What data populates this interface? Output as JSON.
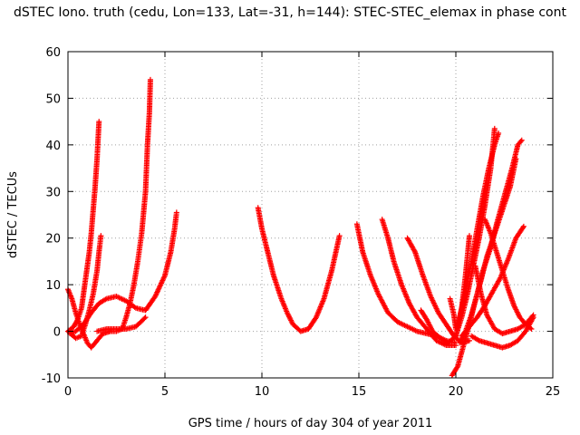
{
  "chart_data": {
    "type": "scatter",
    "title": "dSTEC Iono. truth (cedu, Lon=133, Lat=-31, h=144): STEC-STEC_elemax in phase cont",
    "xlabel": "GPS time / hours of day 304 of year 2011",
    "ylabel": "dSTEC  / TECUs",
    "xlim": [
      0,
      25
    ],
    "ylim": [
      -10,
      60
    ],
    "xticks": [
      0,
      5,
      10,
      15,
      20,
      25
    ],
    "yticks": [
      -10,
      0,
      10,
      20,
      30,
      40,
      50,
      60
    ],
    "grid": true,
    "marker": "+",
    "series_color": "#ff0000",
    "series": [
      {
        "points": [
          [
            0.0,
            0.0
          ],
          [
            0.3,
            1.0
          ],
          [
            0.5,
            2.5
          ],
          [
            0.7,
            5.0
          ],
          [
            0.8,
            8.0
          ],
          [
            0.9,
            11.0
          ],
          [
            1.0,
            14.0
          ],
          [
            1.1,
            17.0
          ],
          [
            1.2,
            21.0
          ],
          [
            1.3,
            26.0
          ],
          [
            1.4,
            31.0
          ],
          [
            1.5,
            37.0
          ],
          [
            1.6,
            45.0
          ]
        ]
      },
      {
        "points": [
          [
            0.0,
            9.0
          ],
          [
            0.2,
            7.0
          ],
          [
            0.4,
            4.0
          ],
          [
            0.6,
            1.5
          ],
          [
            0.8,
            -0.5
          ],
          [
            1.0,
            -2.5
          ],
          [
            1.2,
            -3.5
          ],
          [
            1.5,
            -2.0
          ],
          [
            1.8,
            -0.5
          ],
          [
            2.2,
            0.0
          ],
          [
            2.5,
            0.0
          ],
          [
            2.8,
            0.5
          ],
          [
            3.0,
            3.0
          ],
          [
            3.2,
            6.0
          ],
          [
            3.4,
            10.0
          ],
          [
            3.6,
            15.0
          ],
          [
            3.8,
            21.0
          ],
          [
            4.0,
            30.0
          ],
          [
            4.1,
            40.0
          ],
          [
            4.2,
            47.0
          ],
          [
            4.25,
            54.0
          ]
        ]
      },
      {
        "points": [
          [
            0.0,
            0.0
          ],
          [
            0.4,
            -1.5
          ],
          [
            0.7,
            -1.0
          ],
          [
            0.9,
            1.5
          ],
          [
            1.1,
            4.5
          ],
          [
            1.3,
            8.0
          ],
          [
            1.5,
            13.0
          ],
          [
            1.6,
            17.0
          ],
          [
            1.7,
            20.5
          ]
        ]
      },
      {
        "points": [
          [
            0.1,
            -0.5
          ],
          [
            0.4,
            0.0
          ],
          [
            0.8,
            1.5
          ],
          [
            1.2,
            4.0
          ],
          [
            1.6,
            6.0
          ],
          [
            2.0,
            7.0
          ],
          [
            2.5,
            7.5
          ],
          [
            3.0,
            6.5
          ],
          [
            3.5,
            5.0
          ],
          [
            4.0,
            4.5
          ],
          [
            4.5,
            7.5
          ],
          [
            5.0,
            12.0
          ],
          [
            5.3,
            17.0
          ],
          [
            5.5,
            22.0
          ],
          [
            5.6,
            25.5
          ]
        ]
      },
      {
        "points": [
          [
            1.5,
            0.0
          ],
          [
            2.0,
            0.5
          ],
          [
            2.5,
            0.5
          ],
          [
            3.0,
            0.5
          ],
          [
            3.5,
            1.0
          ],
          [
            4.0,
            3.0
          ]
        ]
      },
      {
        "points": [
          [
            9.8,
            26.5
          ],
          [
            10.0,
            22.0
          ],
          [
            10.3,
            17.0
          ],
          [
            10.6,
            12.0
          ],
          [
            11.0,
            7.0
          ],
          [
            11.3,
            4.0
          ],
          [
            11.6,
            1.5
          ],
          [
            12.0,
            0.0
          ],
          [
            12.4,
            0.5
          ],
          [
            12.8,
            3.0
          ],
          [
            13.2,
            7.0
          ],
          [
            13.6,
            13.0
          ],
          [
            14.0,
            20.5
          ]
        ]
      },
      {
        "points": [
          [
            14.9,
            23.0
          ],
          [
            15.2,
            17.0
          ],
          [
            15.6,
            12.0
          ],
          [
            16.0,
            8.0
          ],
          [
            16.5,
            4.0
          ],
          [
            17.0,
            2.0
          ],
          [
            17.5,
            1.0
          ],
          [
            18.0,
            0.0
          ],
          [
            18.5,
            -0.5
          ],
          [
            19.0,
            -1.0
          ],
          [
            19.5,
            -2.0
          ],
          [
            20.0,
            -2.5
          ]
        ]
      },
      {
        "points": [
          [
            16.2,
            24.0
          ],
          [
            16.5,
            20.0
          ],
          [
            16.8,
            15.0
          ],
          [
            17.2,
            10.0
          ],
          [
            17.6,
            6.0
          ],
          [
            18.0,
            3.0
          ],
          [
            18.5,
            0.5
          ],
          [
            19.0,
            -2.0
          ],
          [
            19.5,
            -3.0
          ],
          [
            20.0,
            -3.0
          ]
        ]
      },
      {
        "points": [
          [
            17.5,
            20.0
          ],
          [
            17.9,
            17.0
          ],
          [
            18.3,
            12.0
          ],
          [
            18.7,
            7.5
          ],
          [
            19.1,
            4.0
          ],
          [
            19.5,
            1.5
          ],
          [
            19.9,
            -1.0
          ],
          [
            20.3,
            -2.5
          ],
          [
            20.7,
            -2.0
          ]
        ]
      },
      {
        "points": [
          [
            18.2,
            4.5
          ],
          [
            18.5,
            2.5
          ],
          [
            18.8,
            0.0
          ],
          [
            19.2,
            -1.5
          ],
          [
            19.6,
            -2.5
          ],
          [
            20.0,
            -1.0
          ],
          [
            20.3,
            3.0
          ],
          [
            20.6,
            8.0
          ],
          [
            20.9,
            14.0
          ],
          [
            21.2,
            20.0
          ],
          [
            21.5,
            27.0
          ],
          [
            21.8,
            35.0
          ],
          [
            22.0,
            43.5
          ]
        ]
      },
      {
        "points": [
          [
            19.7,
            7.0
          ],
          [
            19.9,
            3.5
          ],
          [
            20.0,
            0.5
          ],
          [
            20.2,
            3.0
          ],
          [
            20.5,
            8.5
          ],
          [
            20.8,
            15.0
          ],
          [
            21.1,
            22.0
          ],
          [
            21.4,
            29.0
          ],
          [
            21.7,
            35.0
          ],
          [
            22.0,
            40.0
          ],
          [
            22.2,
            42.5
          ]
        ]
      },
      {
        "points": [
          [
            19.8,
            -9.5
          ],
          [
            20.1,
            -7.5
          ],
          [
            20.4,
            -3.0
          ],
          [
            20.7,
            1.5
          ],
          [
            21.0,
            6.5
          ],
          [
            21.3,
            11.0
          ],
          [
            21.6,
            16.0
          ],
          [
            22.0,
            21.0
          ],
          [
            22.4,
            26.0
          ],
          [
            22.8,
            31.0
          ],
          [
            23.1,
            37.0
          ]
        ]
      },
      {
        "points": [
          [
            20.2,
            -2.5
          ],
          [
            20.5,
            0.0
          ],
          [
            20.8,
            3.5
          ],
          [
            21.1,
            8.0
          ],
          [
            21.4,
            13.0
          ],
          [
            21.8,
            18.0
          ],
          [
            22.1,
            23.0
          ],
          [
            22.5,
            29.0
          ],
          [
            22.9,
            35.0
          ],
          [
            23.2,
            40.0
          ],
          [
            23.4,
            41.0
          ]
        ]
      },
      {
        "points": [
          [
            20.0,
            -1.0
          ],
          [
            20.3,
            5.0
          ],
          [
            20.5,
            12.0
          ],
          [
            20.7,
            20.5
          ]
        ]
      },
      {
        "points": [
          [
            21.0,
            14.0
          ],
          [
            21.3,
            8.0
          ],
          [
            21.6,
            3.5
          ],
          [
            22.0,
            0.5
          ],
          [
            22.4,
            -0.5
          ],
          [
            22.8,
            0.0
          ],
          [
            23.2,
            0.5
          ],
          [
            23.6,
            1.5
          ],
          [
            24.0,
            3.5
          ]
        ]
      },
      {
        "points": [
          [
            20.8,
            -1.0
          ],
          [
            21.2,
            -2.0
          ],
          [
            21.6,
            -2.5
          ],
          [
            22.0,
            -3.0
          ],
          [
            22.4,
            -3.5
          ],
          [
            22.8,
            -3.0
          ],
          [
            23.2,
            -2.0
          ],
          [
            23.6,
            0.0
          ],
          [
            24.0,
            3.0
          ]
        ]
      },
      {
        "points": [
          [
            21.5,
            24.0
          ],
          [
            21.8,
            21.0
          ],
          [
            22.1,
            17.0
          ],
          [
            22.4,
            13.0
          ],
          [
            22.7,
            9.0
          ],
          [
            23.0,
            5.5
          ],
          [
            23.3,
            3.0
          ],
          [
            23.6,
            1.5
          ],
          [
            23.9,
            0.5
          ]
        ]
      },
      {
        "points": [
          [
            20.3,
            -1.0
          ],
          [
            20.7,
            1.0
          ],
          [
            21.1,
            3.0
          ],
          [
            21.5,
            5.5
          ],
          [
            21.9,
            8.5
          ],
          [
            22.3,
            11.5
          ],
          [
            22.7,
            15.5
          ],
          [
            23.1,
            20.0
          ],
          [
            23.5,
            22.5
          ]
        ]
      }
    ]
  }
}
